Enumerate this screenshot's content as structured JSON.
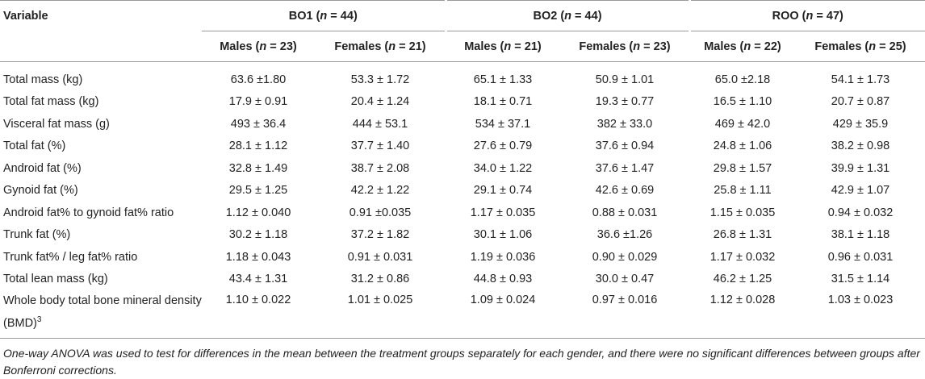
{
  "table": {
    "variable_header": "Variable",
    "groups": [
      {
        "name": "BO1",
        "n_label": "n",
        "n_value": "44"
      },
      {
        "name": "BO2",
        "n_label": "n",
        "n_value": "44"
      },
      {
        "name": "ROO",
        "n_label": "n",
        "n_value": "47"
      }
    ],
    "subheaders": [
      {
        "label": "Males",
        "n_label": "n",
        "n_value": "23"
      },
      {
        "label": "Females",
        "n_label": "n",
        "n_value": "21"
      },
      {
        "label": "Males",
        "n_label": "n",
        "n_value": "21"
      },
      {
        "label": "Females",
        "n_label": "n",
        "n_value": "23"
      },
      {
        "label": "Males",
        "n_label": "n",
        "n_value": "22"
      },
      {
        "label": "Females",
        "n_label": "n",
        "n_value": "25"
      }
    ],
    "rows": [
      {
        "variable": "Total mass (kg)",
        "values": [
          "63.6 ±1.80",
          "53.3 ± 1.72",
          "65.1 ± 1.33",
          "50.9 ± 1.01",
          "65.0 ±2.18",
          "54.1 ± 1.73"
        ]
      },
      {
        "variable": "Total fat mass (kg)",
        "values": [
          "17.9 ± 0.91",
          "20.4 ± 1.24",
          "18.1 ± 0.71",
          "19.3 ± 0.77",
          "16.5 ± 1.10",
          "20.7 ± 0.87"
        ]
      },
      {
        "variable": "Visceral fat mass (g)",
        "values": [
          "493 ± 36.4",
          "444 ± 53.1",
          "534 ± 37.1",
          "382 ± 33.0",
          "469 ± 42.0",
          "429 ± 35.9"
        ]
      },
      {
        "variable": "Total fat (%)",
        "values": [
          "28.1 ± 1.12",
          "37.7 ± 1.40",
          "27.6 ± 0.79",
          "37.6 ± 0.94",
          "24.8 ± 1.06",
          "38.2 ± 0.98"
        ]
      },
      {
        "variable": "Android fat (%)",
        "values": [
          "32.8 ± 1.49",
          "38.7 ± 2.08",
          "34.0 ± 1.22",
          "37.6 ± 1.47",
          "29.8 ± 1.57",
          "39.9 ± 1.31"
        ]
      },
      {
        "variable": "Gynoid fat (%)",
        "values": [
          "29.5 ± 1.25",
          "42.2 ± 1.22",
          "29.1 ± 0.74",
          "42.6 ± 0.69",
          "25.8 ± 1.11",
          "42.9 ± 1.07"
        ]
      },
      {
        "variable": "Android fat% to gynoid fat% ratio",
        "values": [
          "1.12 ± 0.040",
          "0.91 ±0.035",
          "1.17 ± 0.035",
          "0.88 ± 0.031",
          "1.15 ± 0.035",
          "0.94 ± 0.032"
        ]
      },
      {
        "variable": "Trunk fat (%)",
        "values": [
          "30.2 ± 1.18",
          "37.2 ± 1.82",
          "30.1 ± 1.06",
          "36.6 ±1.26",
          "26.8 ± 1.31",
          "38.1 ± 1.18"
        ]
      },
      {
        "variable": "Trunk fat% / leg fat% ratio",
        "values": [
          "1.18 ± 0.043",
          "0.91 ± 0.031",
          "1.19 ± 0.036",
          "0.90 ± 0.029",
          "1.17 ± 0.032",
          "0.96 ± 0.031"
        ]
      },
      {
        "variable": "Total lean mass (kg)",
        "values": [
          "43.4 ± 1.31",
          "31.2 ± 0.86",
          "44.8 ± 0.93",
          "30.0 ± 0.47",
          "46.2 ± 1.25",
          "31.5 ± 1.14"
        ]
      },
      {
        "variable": "Whole body total bone mineral density (BMD)",
        "superscript": "3",
        "values": [
          "1.10 ± 0.022",
          "1.01 ± 0.025",
          "1.09 ± 0.024",
          "0.97 ± 0.016",
          "1.12 ± 0.028",
          "1.03 ± 0.023"
        ]
      }
    ],
    "footnote": "One-way ANOVA was used to test for differences in the mean between the treatment groups separately for each gender, and there were no significant differences between groups after Bonferroni corrections."
  }
}
